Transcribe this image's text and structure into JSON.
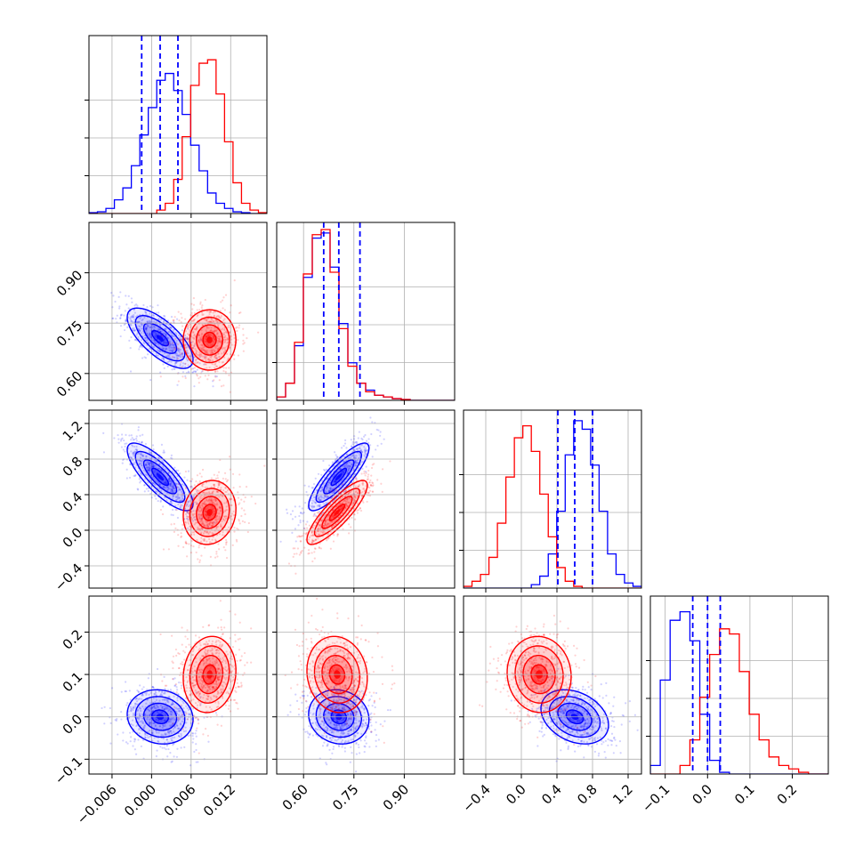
{
  "chart_data": {
    "type": "corner",
    "title": "",
    "colors": {
      "blue": "#0000ff",
      "red": "#ff0000"
    },
    "grid": true,
    "params": [
      {
        "range": [
          -0.0095,
          0.0175
        ],
        "ticks": [
          -0.006,
          0.0,
          0.006,
          0.012
        ],
        "tick_labels": [
          "−0.006",
          "0.000",
          "0.006",
          "0.012"
        ]
      },
      {
        "range": [
          0.52,
          1.05
        ],
        "ticks": [
          0.6,
          0.75,
          0.9
        ],
        "tick_labels": [
          "0.60",
          "0.75",
          "0.90"
        ]
      },
      {
        "range": [
          -0.65,
          1.35
        ],
        "ticks": [
          -0.4,
          0.0,
          0.4,
          0.8,
          1.2
        ],
        "tick_labels": [
          "−0.4",
          "0.0",
          "0.4",
          "0.8",
          "1.2"
        ]
      },
      {
        "range": [
          -0.135,
          0.285
        ],
        "ticks": [
          -0.1,
          0.0,
          0.1,
          0.2
        ],
        "tick_labels": [
          "−0.1",
          "0.0",
          "0.1",
          "0.2"
        ]
      }
    ],
    "series": [
      {
        "color": "blue",
        "means": [
          0.0013,
          0.705,
          0.6,
          0.0
        ],
        "sigmas": [
          0.0025,
          0.045,
          0.19,
          0.032
        ],
        "corr": [
          [
            1,
            -0.7,
            -0.8,
            -0.1
          ],
          [
            -0.7,
            1,
            0.85,
            -0.1
          ],
          [
            -0.8,
            0.85,
            1,
            -0.3
          ],
          [
            -0.1,
            -0.1,
            -0.3,
            1
          ]
        ],
        "quantiles": [
          [
            -0.0015,
            0.0013,
            0.004
          ],
          [
            0.66,
            0.705,
            0.768
          ],
          [
            0.41,
            0.6,
            0.8
          ],
          [
            -0.035,
            0.0,
            0.03
          ]
        ]
      },
      {
        "color": "red",
        "means": [
          0.0088,
          0.7,
          0.2,
          0.1
        ],
        "sigmas": [
          0.002,
          0.045,
          0.18,
          0.045
        ],
        "corr": [
          [
            1,
            0.0,
            0.1,
            0.1
          ],
          [
            0.0,
            1,
            0.85,
            -0.1
          ],
          [
            0.1,
            0.85,
            1,
            -0.05
          ],
          [
            0.1,
            -0.1,
            -0.05,
            1
          ]
        ]
      }
    ],
    "histograms": [
      {
        "edges": [
          -0.0095,
          0.0175
        ],
        "blue": [
          0.005,
          0.01,
          0.03,
          0.08,
          0.15,
          0.28,
          0.46,
          0.62,
          0.78,
          0.82,
          0.72,
          0.58,
          0.4,
          0.25,
          0.12,
          0.06,
          0.03,
          0.01,
          0.005,
          0,
          0
        ],
        "red": [
          0,
          0,
          0,
          0,
          0,
          0,
          0,
          0,
          0.02,
          0.06,
          0.2,
          0.45,
          0.75,
          0.88,
          0.9,
          0.7,
          0.42,
          0.18,
          0.06,
          0.02,
          0.005
        ]
      },
      {
        "edges": [
          0.52,
          1.05
        ],
        "blue": [
          0.02,
          0.1,
          0.32,
          0.72,
          0.95,
          0.98,
          0.78,
          0.45,
          0.22,
          0.1,
          0.06,
          0.03,
          0.02,
          0.01,
          0.005,
          0,
          0,
          0,
          0,
          0
        ],
        "red": [
          0.02,
          0.1,
          0.34,
          0.74,
          0.97,
          1.0,
          0.75,
          0.42,
          0.2,
          0.1,
          0.05,
          0.03,
          0.02,
          0.01,
          0.005,
          0,
          0,
          0,
          0,
          0
        ]
      },
      {
        "edges": [
          -0.65,
          1.35
        ],
        "blue": [
          0,
          0,
          0,
          0,
          0,
          0,
          0,
          0,
          0.02,
          0.07,
          0.2,
          0.45,
          0.78,
          0.98,
          0.93,
          0.72,
          0.45,
          0.2,
          0.08,
          0.03,
          0.01
        ],
        "red": [
          0.01,
          0.04,
          0.08,
          0.18,
          0.38,
          0.65,
          0.88,
          0.95,
          0.8,
          0.55,
          0.3,
          0.12,
          0.04,
          0.01,
          0,
          0,
          0,
          0,
          0,
          0,
          0
        ]
      },
      {
        "edges": [
          -0.135,
          0.285
        ],
        "blue": [
          0.05,
          0.55,
          0.9,
          0.95,
          0.78,
          0.35,
          0.08,
          0.01,
          0,
          0,
          0,
          0,
          0,
          0,
          0,
          0,
          0,
          0
        ],
        "red": [
          0,
          0,
          0,
          0.05,
          0.2,
          0.45,
          0.7,
          0.85,
          0.82,
          0.6,
          0.35,
          0.2,
          0.1,
          0.05,
          0.03,
          0.01,
          0,
          0
        ]
      }
    ]
  }
}
